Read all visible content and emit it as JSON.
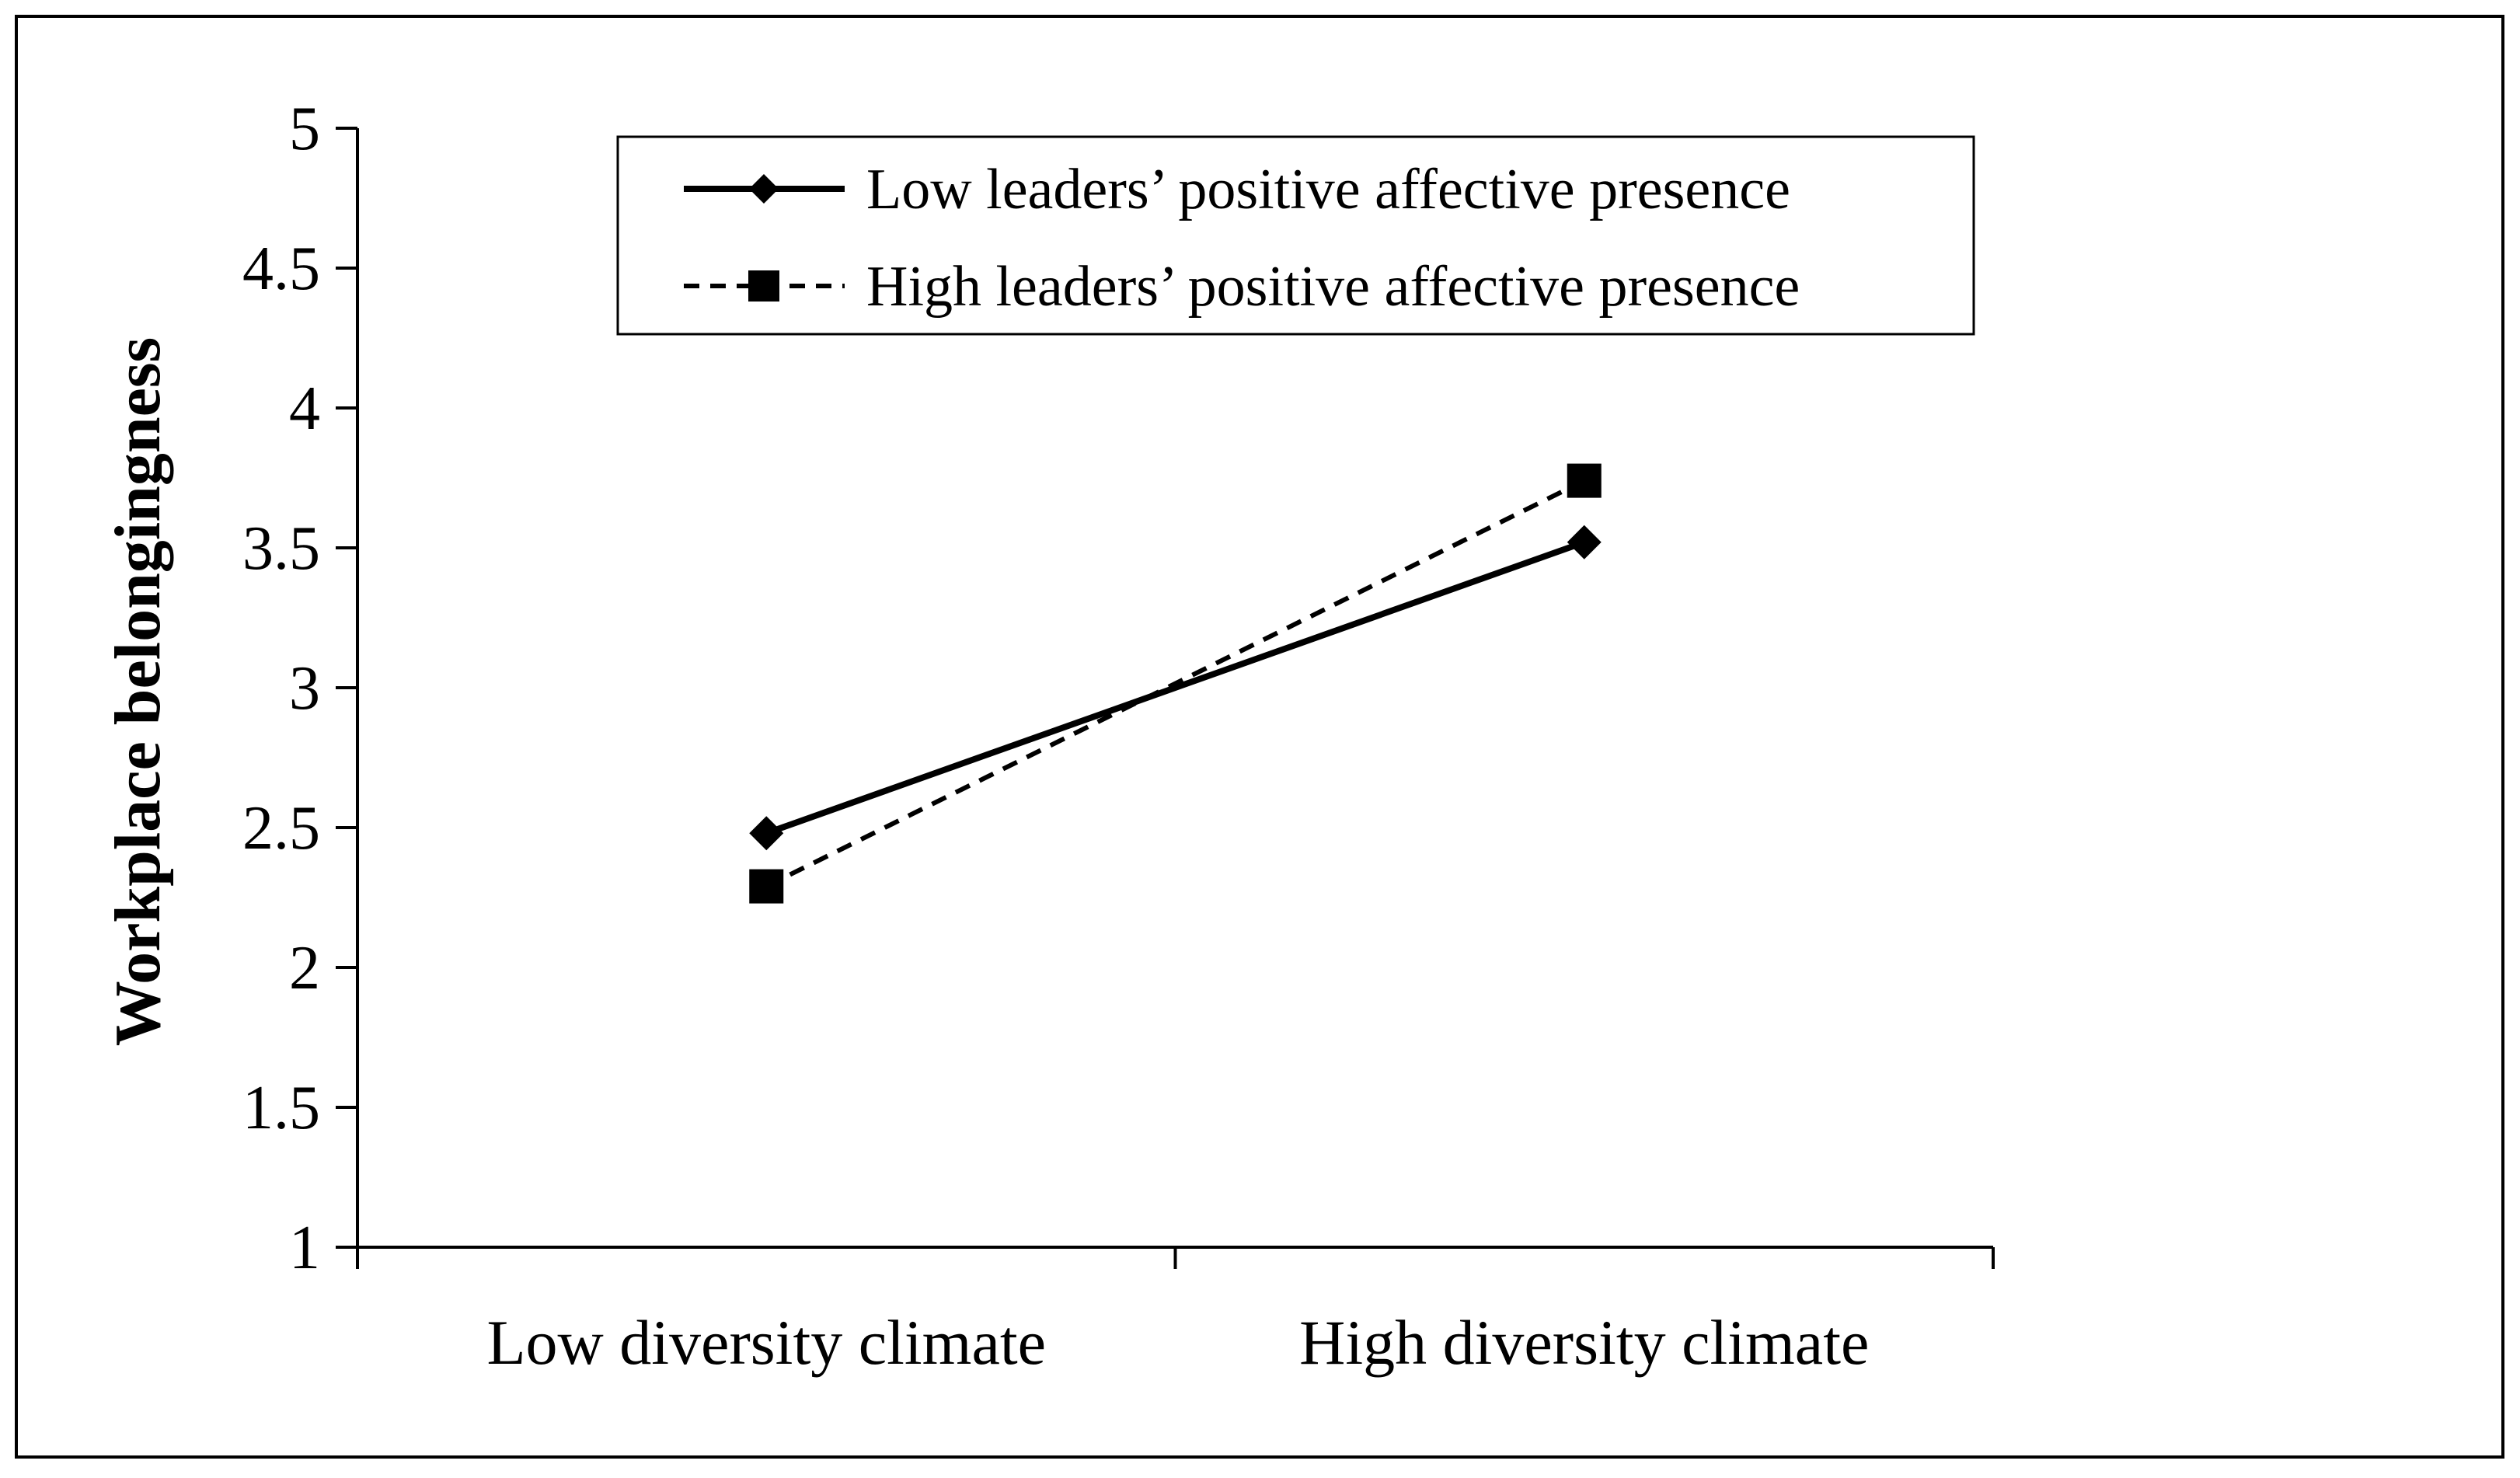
{
  "chart_data": {
    "type": "line",
    "title": "",
    "xlabel": "",
    "ylabel": "Workplace belongingness",
    "categories": [
      "Low diversity climate",
      "High diversity climate"
    ],
    "ylim": [
      1,
      5
    ],
    "yticks": [
      "1",
      "1.5",
      "2",
      "2.5",
      "3",
      "3.5",
      "4",
      "4.5",
      "5"
    ],
    "grid": false,
    "legend_position": "top",
    "series": [
      {
        "name": "Low leaders’ positive affective presence",
        "values": [
          2.48,
          3.52
        ],
        "marker": "diamond",
        "line": "solid"
      },
      {
        "name": "High leaders’ positive affective presence",
        "values": [
          2.29,
          3.74
        ],
        "marker": "square",
        "line": "dashed"
      }
    ]
  },
  "colors": {
    "axis": "#000000",
    "line": "#000000",
    "background": "#ffffff"
  }
}
